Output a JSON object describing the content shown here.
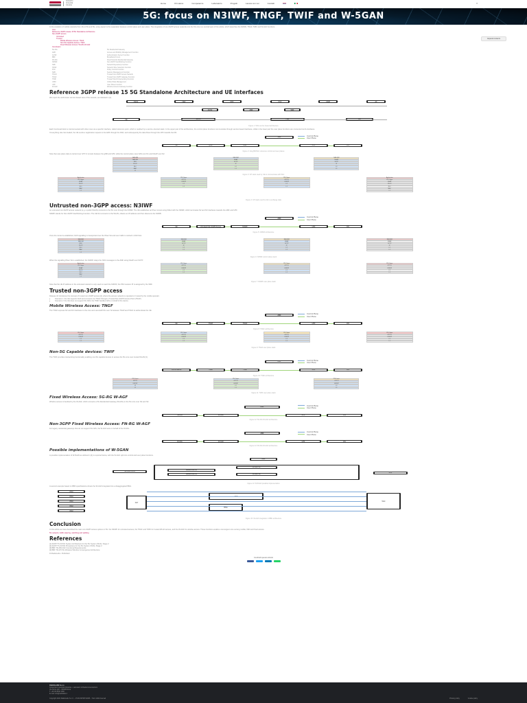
{
  "header": {
    "logo_text": "RADIOLABS",
    "logo_sub": "Consorzio Università Industria",
    "nav": [
      "Home",
      "Chi siamo",
      "Competenze",
      "Laboratorio",
      "Progetti",
      "Lavora con noi",
      "Contatti"
    ],
    "flags": [
      "#c8102e",
      "#009246"
    ],
    "lang": "IT"
  },
  "hero": {
    "title": "5G: focus on N3IWF, TNGF, TWIF and W-5GAN"
  },
  "intro": "In the evolution of mobile networks from 4G to 5G and 5G, a key aspect is the separation between control plane and user plane. The integration of non-3GPP access networks into the 5G core is a central topic of this article, which describes the N3IWF, TNGF, TWIF and W-AGF functions.",
  "toc": {
    "items": [
      {
        "level": 1,
        "label": "Intro"
      },
      {
        "level": 1,
        "label": "Reference 3GPP release 15 5G Standalone Architecture"
      },
      {
        "level": 1,
        "label": "Non-3GPP access"
      },
      {
        "level": 2,
        "label": "Untrusted"
      },
      {
        "level": 2,
        "label": "Trusted"
      },
      {
        "level": 3,
        "label": "Mobile Wireless Access: TNGF"
      },
      {
        "level": 3,
        "label": "Non-5G Capable devices: TWIF"
      },
      {
        "level": 3,
        "label": "Fixed Wireless Access: 5G-RG W-AGF"
      },
      {
        "level": 1,
        "label": "Conclusion"
      }
    ]
  },
  "share_button": "Expand contents",
  "abbreviations": [
    [
      "5G-RG",
      "5G Residential Gateway"
    ],
    [
      "AMF",
      "Access and Mobility Management Function"
    ],
    [
      "AUSF",
      "Authentication Server Function"
    ],
    [
      "BBF",
      "Broadband Forum"
    ],
    [
      "FN-RG",
      "Fixed Network Residential Gateway"
    ],
    [
      "N3IWF",
      "Non-3GPP InterWorking Function"
    ],
    [
      "NRF",
      "Network Repository Function"
    ],
    [
      "NSSF",
      "Network Slice Selection Function"
    ],
    [
      "PCF",
      "Policy Control Function"
    ],
    [
      "SMF",
      "Session Management Function"
    ],
    [
      "TNAN",
      "Trusted Non-3GPP Access Network"
    ],
    [
      "TNGF",
      "Trusted Non-3GPP Gateway Function"
    ],
    [
      "TWIF",
      "Trusted WLAN Interworking Function"
    ],
    [
      "UDM",
      "Unified Data Management"
    ],
    [
      "UPF",
      "User Plane Function"
    ],
    [
      "W-AGF",
      "Wireline Access Gateway Function"
    ]
  ],
  "sections": {
    "ref_arch": {
      "title": "Reference 3GPP release 15 5G Standalone Architecture and UE interfaces",
      "intro": "We report the well known service based view of 5G network, as indicated in [1]",
      "caption1": "Figure 1: 5GS service based architecture",
      "p1": "Each functional block is interconnected with other ones via a specific interface, called reference point, which is realized by a service oriented stack. In the upper part of the architecture, the control plane functions communicate through service based interfaces, while in the lower part the user plane functions are connected via N-interfaces.",
      "p2": "If everything else has loaded, the UE sends a registration request to the AMF through the RAN, and subsequently the data flows through the UPF towards the DN.",
      "caption2": "Figure 2: UE-gNB-5GC reference control and user planes",
      "caption3": "Figure 3: CP stack used by UE to communicate with 5GC",
      "p3": "Note that user-plane data is carried over GTP-U tunnels between the gNB and UPF, while the control plane uses NAS over N1 and NGAP over N2.",
      "caption4": "Figure 4: UP stack used by UE to exchange data"
    },
    "untrusted": {
      "title": "Untrusted non-3GPP access: N3IWF",
      "p1": "An untrusted non-3GPP access network (e.g. a public WLAN) connects to the 5G core through the N3IWF. The UE establishes an IPsec tunnel using IKEv2 with the N3IWF, which terminates N2 and N3 interfaces towards the AMF and UPF.",
      "p2": "N3IWF stands for Non-3GPP InterWorking Function. The UE first connects to the WLAN, obtains an IP address and then discovers the N3IWF.",
      "p3": "Once the tunnel is established, NAS signalling is transported over the IPsec SA and user traffic is carried in child SAs.",
      "caption1": "Figure 5: N3IWF architecture",
      "caption2": "Figure 6: N3IWF control plane stack",
      "caption3": "Figure 7: N3IWF user plane stack",
      "p4": "When the signalling IPsec SA is established, the N3IWF relays the NAS messages to the AMF using NGAP over SCTP.",
      "p5": "Note that the UE IP address in the untrusted network is only used to reach the N3IWF; the PDU session IP is assigned by the SMF."
    },
    "trusted": {
      "title": "Trusted non-3GPP access",
      "p1": "Release 16 introduces the concept of trusted non-3GPP access [2], where the access network is operated or trusted by the mobile operator.",
      "bullets": [
        "Scenario 1: the UE supports NAS and connects via TNGF through a Trusted Non-3GPP Access Point (TNAP).",
        "Scenario 2: the UE does not support 5G NAS; the TWIF handles NAS on behalf of the device."
      ],
      "tngf": {
        "title": "Mobile Wireless Access: TNGF",
        "p1": "The TNGF exposes N2 and N3 interfaces to the core and uses EAP-5G over Ta between TNAP and TNGF to authenticate the UE.",
        "caption": "Figure 8: TNGF architecture",
        "caption2": "Figure 9: TNGF user plane stack"
      },
      "twif": {
        "title": "Non-5G Capable devices: TWIF",
        "p1": "The TWIF provides interworking functionality enabling non-5G capable devices to access the 5G core over trusted WLAN [3].",
        "caption": "Figure 10: TWIF architecture",
        "caption2": "Figure 11: TWIF user plane stack"
      },
      "fwa": {
        "title": "Fixed Wireless Access: 5G-RG W-AGF",
        "p1": "Wireline access is handled by the W-AGF, which connects a 5G Residential Gateway (5G-RG) to the 5G core over N2 and N3.",
        "caption": "Figure 12: 5G-RG W-AGF architecture"
      },
      "fnrg": {
        "title": "Non-3GPP Fixed Wireless Access: FN-RG W-AGF",
        "p1": "For legacy residential gateways that do not support 5G NAS, the W-AGF acts on behalf of the FN-RG.",
        "caption": "Figure 13: FN-RG W-AGF architecture"
      },
      "impl": {
        "title": "Possible implementations of W-5GAN",
        "p1": "A possible implementation of W-5GAN as defined in [4] is reported below, with the W-AGF split into control and user plane functions.",
        "caption": "Figure 14: W-5GAN possible implementation",
        "p2": "A second example based on BBF specifications shows the W-AGF integrated into a disaggregated BNG.",
        "caption2": "Figure 15: W-AGF integration in BBF architecture"
      }
    },
    "conclusion": {
      "title": "Conclusion",
      "p1": "In this article we have described the main non-3GPP access options in 5G: the N3IWF for untrusted access, the TNGF and TWIF for trusted WLAN access, and the W-AGF for wireline access. These functions enable a convergent core serving mobile, WiFi and fixed access.",
      "link": "5G network, traffic steering, switching and splitting"
    },
    "references": {
      "title": "References",
      "items": [
        "[1] 3GPP TS 23.501 System Architecture for the 5G System (5GS); Stage 2",
        "[2] 3GPP TS 23.502 Procedures for the 5G System (5GS); Stage 2",
        "[3] BBF TR-456 AGF Functional Requirements",
        "[4] BBF TR-470 5G Wireless Wireline Convergence Architecture"
      ]
    }
  },
  "author": "Di RadioLabs • Published",
  "share": {
    "label": "Condividi questo articolo",
    "colors": [
      "#3b5998",
      "#1da1f2",
      "#0077b5",
      "#25d366"
    ]
  },
  "footer": {
    "company": "RADIOLABS S.c.r.l.",
    "address": "Consorzio Università Industria – Laboratori di Radiocomunicazioni",
    "address2": "Via Nizza 128 – 00198 Roma",
    "phone": "T. +39 06 8530 1900",
    "email": "E-mail",
    "email_value": "info@radiolabs.it",
    "copyright": "Copyright 2021 RadioLabs S.c.r.l. – P.IVA 09708741005 – Tutti i diritti riservati",
    "links": [
      "Privacy policy",
      "Cookie policy"
    ]
  },
  "diagram1": {
    "top": [
      "NSSF",
      "NEF",
      "NRF",
      "PCF",
      "UDM",
      "AF"
    ],
    "mid": [
      "AUSF",
      "AMF",
      "SMF"
    ],
    "bottom": [
      "UE",
      "(R)AN",
      "UPF",
      "DN"
    ],
    "labels": [
      "N1",
      "N2",
      "N3",
      "N4",
      "N6"
    ]
  },
  "diagram2": {
    "nodes": [
      "UE",
      "gNB",
      "AMF",
      "SMF",
      "UPF",
      "DN"
    ],
    "legend": [
      "Control Plane",
      "User Plane"
    ],
    "legend_colors": [
      "#7ea8d8",
      "#9fd57a"
    ]
  },
  "diagram_n3iwf": {
    "nodes": [
      "UE",
      "Untrusted Non-3GPP Access",
      "N3IWF",
      "AMF",
      "UPF",
      "DN"
    ]
  },
  "diagram_tngf": {
    "nodes": [
      "UE",
      "TNAP",
      "TNGF",
      "AMF",
      "UPF",
      "DN"
    ],
    "tnan": "TNAN"
  },
  "diagram_twif": {
    "nodes": [
      "N5CW device",
      "TNAP",
      "TWIF",
      "AMF",
      "UPF",
      "DN"
    ]
  },
  "diagram_wagf": {
    "nodes": [
      "5G-RG",
      "W-AGF",
      "AMF",
      "UPF",
      "DN"
    ]
  },
  "diagram_fnrg": {
    "nodes": [
      "FN-RG",
      "W-AGF",
      "AMF",
      "UPF",
      "DN"
    ]
  },
  "diagram_impl": {
    "nodes": [
      "AMF",
      "W-AGF-CP",
      "W-AGF-UP",
      "UPF",
      "Wireline AN-UP",
      "Wireline AN-CP",
      "5G-RG/FN-RG"
    ]
  },
  "diagram_bbf": {
    "nodes": [
      "OLT",
      "BNG",
      "AGF",
      "5GC"
    ]
  },
  "stacks": {
    "cp_ue": [
      "NAS-MM",
      "NAS-SM",
      "RRC",
      "PDCP",
      "RLC",
      "MAC",
      "L1"
    ],
    "cp_amf": [
      "NAS-MM",
      "NGAP",
      "SCTP",
      "IP",
      "L2",
      "L1"
    ],
    "up_ue": [
      "Application",
      "PDU layer",
      "SDAP",
      "PDCP",
      "RLC",
      "MAC",
      "L1"
    ],
    "up_upf": [
      "PDU layer",
      "GTP-U",
      "UDP/IP",
      "L2",
      "L1"
    ]
  }
}
